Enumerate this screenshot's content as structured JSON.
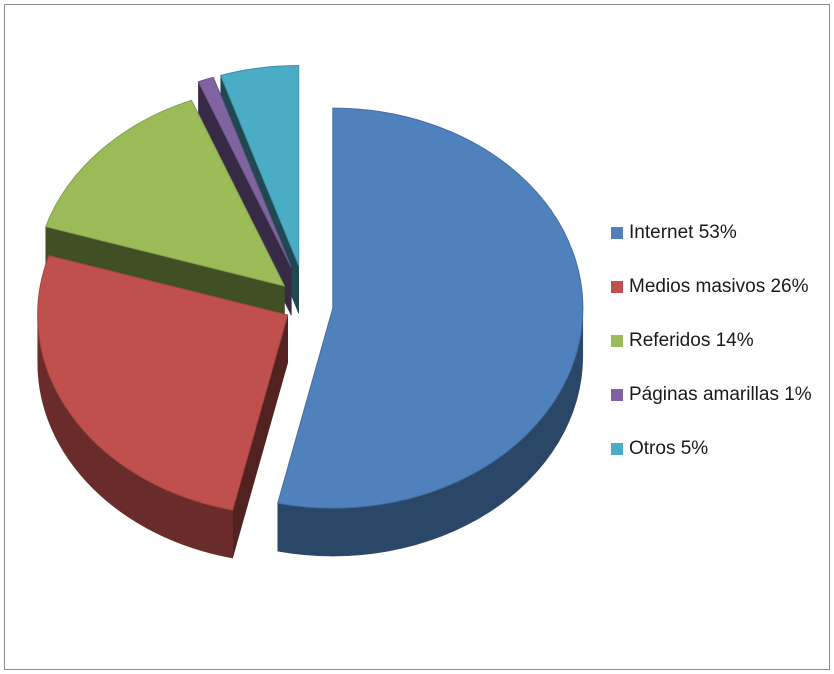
{
  "chart_data": {
    "type": "pie",
    "title": "",
    "slices": [
      {
        "label": "Internet 53%",
        "value": 53,
        "color": "#4F81BD"
      },
      {
        "label": "Medios masivos 26%",
        "value": 26,
        "color": "#C0504D"
      },
      {
        "label": "Referidos 14%",
        "value": 14,
        "color": "#9BBB59"
      },
      {
        "label": "Páginas amarillas 1%",
        "value": 1,
        "color": "#8064A2"
      },
      {
        "label": "Otros 5%",
        "value": 5,
        "color": "#4BACC6"
      }
    ],
    "legend_position": "right",
    "style": "3d-exploded"
  }
}
